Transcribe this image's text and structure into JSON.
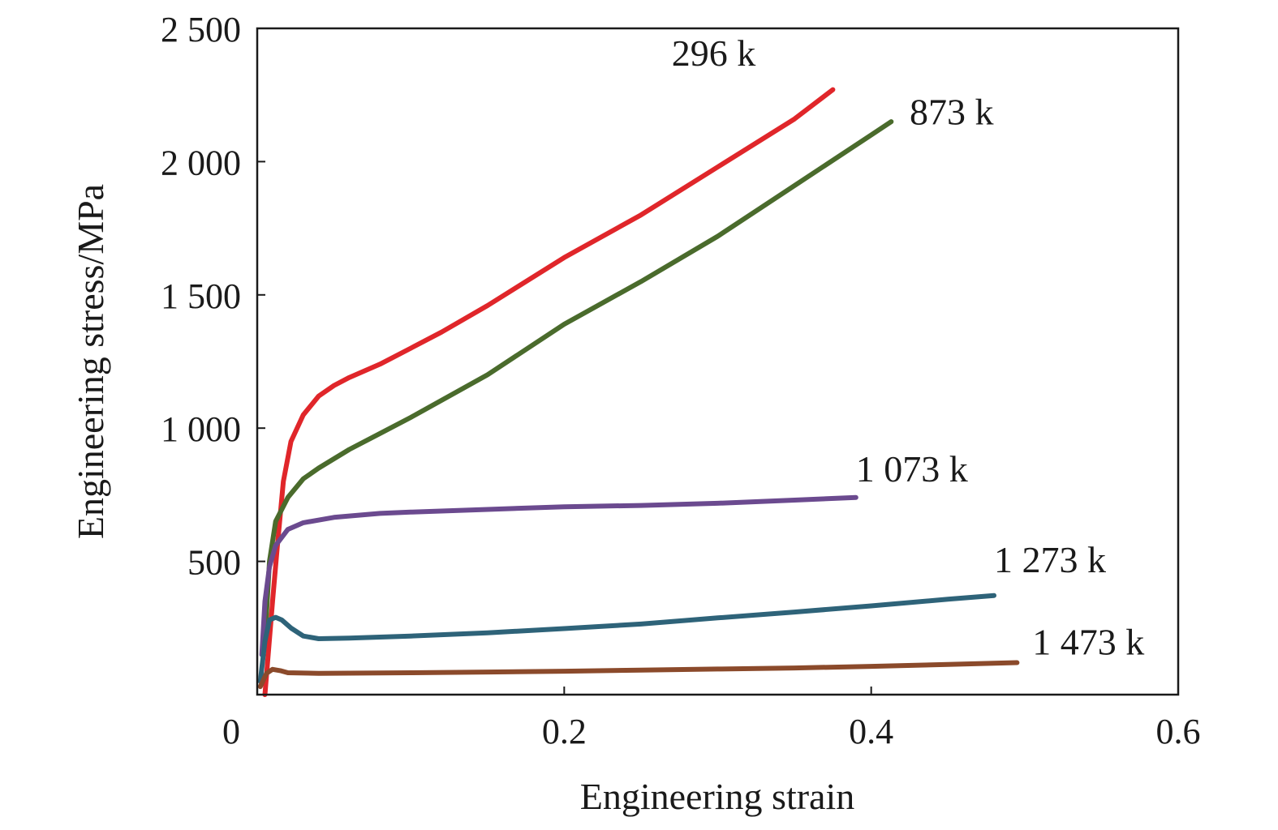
{
  "chart_data": {
    "type": "line",
    "xlabel": "Engineering strain",
    "ylabel": "Engineering stress/MPa",
    "xlim": [
      0,
      0.6
    ],
    "ylim": [
      0,
      2500
    ],
    "x_ticks": [
      0,
      0.2,
      0.4,
      0.6
    ],
    "x_tick_labels": [
      "0",
      "0.2",
      "0.4",
      "0.6"
    ],
    "y_ticks": [
      500,
      1000,
      1500,
      2000,
      2500
    ],
    "y_tick_labels": [
      "500",
      "1 000",
      "1 500",
      "2 000",
      "2 500"
    ],
    "grid": false,
    "legend": "none",
    "series": [
      {
        "name": "296 k",
        "color": "#e0262a",
        "points": [
          [
            0.005,
            0
          ],
          [
            0.01,
            350
          ],
          [
            0.013,
            550
          ],
          [
            0.017,
            800
          ],
          [
            0.022,
            950
          ],
          [
            0.03,
            1050
          ],
          [
            0.04,
            1120
          ],
          [
            0.05,
            1160
          ],
          [
            0.06,
            1190
          ],
          [
            0.08,
            1240
          ],
          [
            0.1,
            1300
          ],
          [
            0.12,
            1360
          ],
          [
            0.15,
            1460
          ],
          [
            0.2,
            1640
          ],
          [
            0.25,
            1800
          ],
          [
            0.3,
            1980
          ],
          [
            0.35,
            2160
          ],
          [
            0.375,
            2270
          ]
        ]
      },
      {
        "name": "873 k",
        "color": "#4a6b2c",
        "points": [
          [
            0.005,
            200
          ],
          [
            0.008,
            500
          ],
          [
            0.012,
            650
          ],
          [
            0.02,
            740
          ],
          [
            0.03,
            810
          ],
          [
            0.04,
            850
          ],
          [
            0.06,
            920
          ],
          [
            0.08,
            980
          ],
          [
            0.1,
            1040
          ],
          [
            0.15,
            1200
          ],
          [
            0.2,
            1390
          ],
          [
            0.25,
            1550
          ],
          [
            0.3,
            1720
          ],
          [
            0.35,
            1910
          ],
          [
            0.4,
            2100
          ],
          [
            0.413,
            2150
          ]
        ]
      },
      {
        "name": "1 073 k",
        "color": "#6b4a8f",
        "points": [
          [
            0.003,
            150
          ],
          [
            0.005,
            350
          ],
          [
            0.008,
            480
          ],
          [
            0.012,
            560
          ],
          [
            0.02,
            620
          ],
          [
            0.03,
            645
          ],
          [
            0.05,
            665
          ],
          [
            0.08,
            680
          ],
          [
            0.1,
            685
          ],
          [
            0.15,
            695
          ],
          [
            0.2,
            705
          ],
          [
            0.25,
            710
          ],
          [
            0.3,
            718
          ],
          [
            0.35,
            730
          ],
          [
            0.39,
            740
          ]
        ]
      },
      {
        "name": "1 273 k",
        "color": "#2e6379",
        "points": [
          [
            0.002,
            50
          ],
          [
            0.005,
            200
          ],
          [
            0.008,
            280
          ],
          [
            0.012,
            290
          ],
          [
            0.016,
            280
          ],
          [
            0.022,
            250
          ],
          [
            0.03,
            220
          ],
          [
            0.04,
            210
          ],
          [
            0.06,
            212
          ],
          [
            0.1,
            220
          ],
          [
            0.15,
            232
          ],
          [
            0.2,
            248
          ],
          [
            0.25,
            265
          ],
          [
            0.3,
            288
          ],
          [
            0.35,
            310
          ],
          [
            0.4,
            333
          ],
          [
            0.45,
            358
          ],
          [
            0.48,
            372
          ]
        ]
      },
      {
        "name": "1 473 k",
        "color": "#8b4a2b",
        "points": [
          [
            0.002,
            30
          ],
          [
            0.006,
            80
          ],
          [
            0.01,
            95
          ],
          [
            0.015,
            90
          ],
          [
            0.02,
            82
          ],
          [
            0.04,
            80
          ],
          [
            0.1,
            82
          ],
          [
            0.15,
            85
          ],
          [
            0.2,
            88
          ],
          [
            0.25,
            92
          ],
          [
            0.3,
            96
          ],
          [
            0.35,
            100
          ],
          [
            0.4,
            106
          ],
          [
            0.45,
            113
          ],
          [
            0.495,
            120
          ]
        ]
      }
    ]
  }
}
